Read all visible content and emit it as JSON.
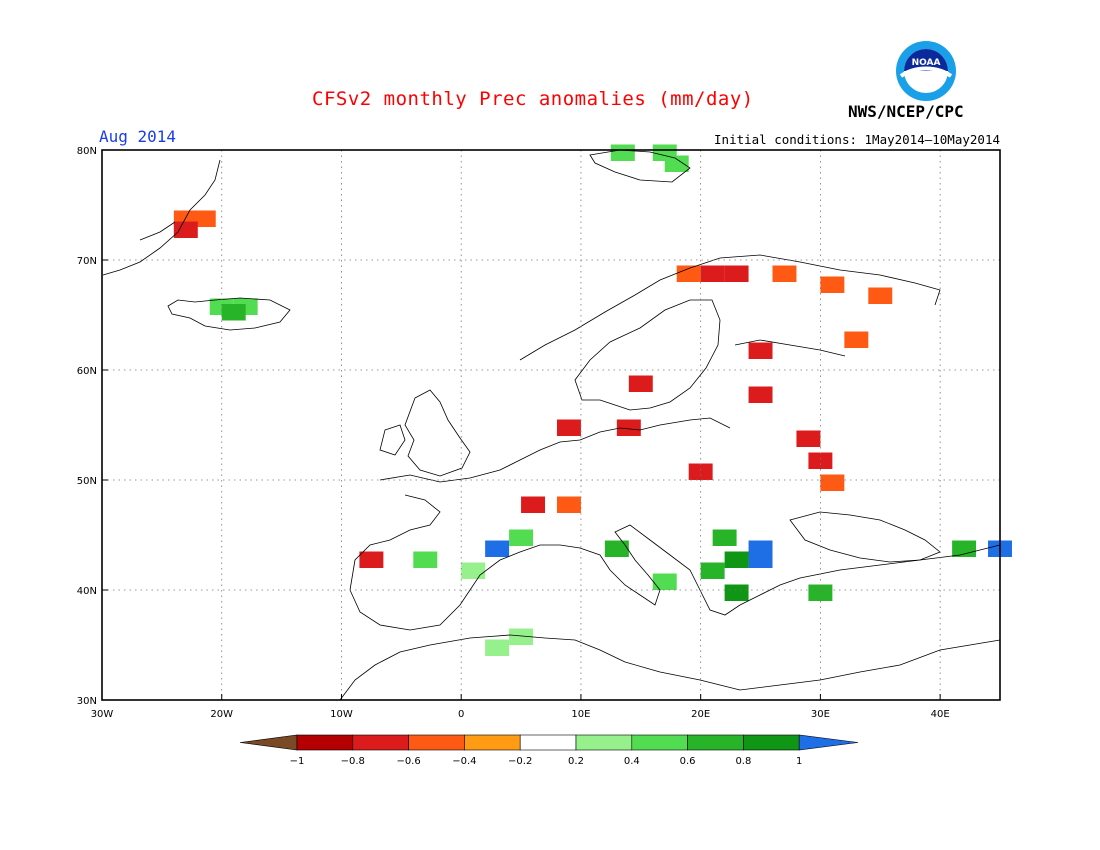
{
  "header": {
    "title": "CFSv2 monthly Prec anomalies (mm/day)",
    "org": "NWS/NCEP/CPC",
    "month": "Aug 2014",
    "initial_conditions": "Initial conditions: 1May2014—10May2014",
    "logo_text": "NOAA"
  },
  "map": {
    "lon_labels": [
      "30W",
      "20W",
      "10W",
      "0",
      "10E",
      "20E",
      "30E",
      "40E"
    ],
    "lat_labels": [
      "80N",
      "70N",
      "60N",
      "50N",
      "40N",
      "30N"
    ],
    "lon_range": [
      -30,
      45
    ],
    "lat_range": [
      30,
      80
    ],
    "grid": "dotted",
    "anomaly_cells_code_legend": "digit = legend bin index (0: -1..-0.8 dark red ... 8: 0.8..1 dark green, 9: >1 blue)",
    "anomaly_cells": [
      {
        "lat": 79,
        "lon": 12.5,
        "code": 6
      },
      {
        "lat": 79,
        "lon": 16,
        "code": 6
      },
      {
        "lat": 78,
        "lon": 17,
        "code": 6
      },
      {
        "lat": 73,
        "lon": -24,
        "code": 3
      },
      {
        "lat": 73,
        "lon": -22.5,
        "code": 3
      },
      {
        "lat": 72,
        "lon": -24,
        "code": 2
      },
      {
        "lat": 65,
        "lon": -21,
        "code": 6
      },
      {
        "lat": 65,
        "lon": -19,
        "code": 6
      },
      {
        "lat": 64.5,
        "lon": -20,
        "code": 7
      },
      {
        "lat": 68,
        "lon": 18,
        "code": 3
      },
      {
        "lat": 68,
        "lon": 20,
        "code": 2
      },
      {
        "lat": 68,
        "lon": 22,
        "code": 2
      },
      {
        "lat": 68,
        "lon": 26,
        "code": 3
      },
      {
        "lat": 67,
        "lon": 30,
        "code": 3
      },
      {
        "lat": 66,
        "lon": 34,
        "code": 3
      },
      {
        "lat": 62,
        "lon": 32,
        "code": 3
      },
      {
        "lat": 61,
        "lon": 24,
        "code": 2
      },
      {
        "lat": 58,
        "lon": 14,
        "code": 2
      },
      {
        "lat": 57,
        "lon": 24,
        "code": 2
      },
      {
        "lat": 54,
        "lon": 8,
        "code": 2
      },
      {
        "lat": 54,
        "lon": 13,
        "code": 2
      },
      {
        "lat": 53,
        "lon": 28,
        "code": 2
      },
      {
        "lat": 51,
        "lon": 29,
        "code": 2
      },
      {
        "lat": 50,
        "lon": 19,
        "code": 2
      },
      {
        "lat": 49,
        "lon": 30,
        "code": 3
      },
      {
        "lat": 47,
        "lon": 5,
        "code": 2
      },
      {
        "lat": 47,
        "lon": 8,
        "code": 3
      },
      {
        "lat": 42,
        "lon": -8.5,
        "code": 2
      },
      {
        "lat": 44,
        "lon": 21,
        "code": 7
      },
      {
        "lat": 43,
        "lon": 24,
        "code": 9
      },
      {
        "lat": 42,
        "lon": 24,
        "code": 9
      },
      {
        "lat": 42,
        "lon": 22,
        "code": 8
      },
      {
        "lat": 41,
        "lon": 20,
        "code": 7
      },
      {
        "lat": 39,
        "lon": 22,
        "code": 8
      },
      {
        "lat": 43,
        "lon": 2,
        "code": 9
      },
      {
        "lat": 44,
        "lon": 4,
        "code": 6
      },
      {
        "lat": 42,
        "lon": -4,
        "code": 6
      },
      {
        "lat": 41,
        "lon": 0,
        "code": 5
      },
      {
        "lat": 43,
        "lon": 12,
        "code": 7
      },
      {
        "lat": 40,
        "lon": 16,
        "code": 6
      },
      {
        "lat": 39,
        "lon": 29,
        "code": 7
      },
      {
        "lat": 43,
        "lon": 44,
        "code": 9
      },
      {
        "lat": 43,
        "lon": 41,
        "code": 7
      },
      {
        "lat": 34,
        "lon": 2,
        "code": 5
      },
      {
        "lat": 35,
        "lon": 4,
        "code": 5
      }
    ]
  },
  "legend": {
    "labels": [
      "−1",
      "−0.8",
      "−0.6",
      "−0.4",
      "−0.2",
      "0.2",
      "0.4",
      "0.6",
      "0.8",
      "1"
    ],
    "colors": [
      "#7a4a26",
      "#b40000",
      "#dc1c1c",
      "#ff5a14",
      "#ff9c14",
      "#ffffff",
      "#96f08c",
      "#52dc52",
      "#28b428",
      "#0f9614",
      "#1e6ee6"
    ]
  }
}
